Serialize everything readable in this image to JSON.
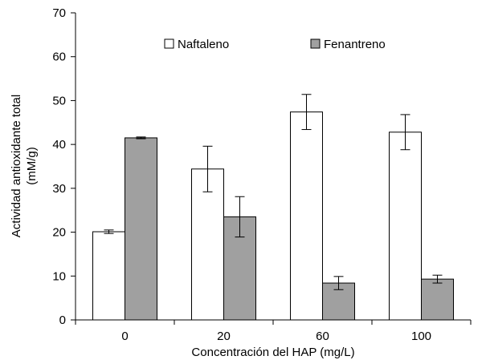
{
  "chart_data": {
    "type": "bar",
    "title": "",
    "xlabel": "Concentración del HAP (mg/L)",
    "ylabel_lines": [
      "Actividad antioxidante total",
      "(mM/g)"
    ],
    "categories": [
      "0",
      "20",
      "60",
      "100"
    ],
    "ylim": [
      0,
      70
    ],
    "yticks": [
      0,
      10,
      20,
      30,
      40,
      50,
      60,
      70
    ],
    "grid": false,
    "legend_position": "top",
    "series": [
      {
        "name": "Naftaleno",
        "color": "#ffffff",
        "values": [
          20.1,
          34.4,
          47.4,
          42.8
        ],
        "errors": [
          0.4,
          5.2,
          4.0,
          4.0
        ]
      },
      {
        "name": "Fenantreno",
        "color": "#a0a0a0",
        "values": [
          41.5,
          23.5,
          8.4,
          9.3
        ],
        "errors": [
          0.2,
          4.6,
          1.5,
          0.9
        ]
      }
    ]
  }
}
